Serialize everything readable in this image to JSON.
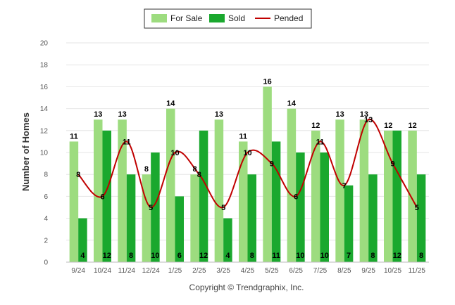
{
  "chart_data": {
    "type": "bar",
    "ylabel": "Number of Homes",
    "xlabel": "",
    "ylim": [
      0,
      20
    ],
    "yticks": [
      0,
      2,
      4,
      6,
      8,
      10,
      12,
      14,
      16,
      18,
      20
    ],
    "grid": true,
    "legend_position": "top-center",
    "categories": [
      "9/24",
      "10/24",
      "11/24",
      "12/24",
      "1/25",
      "2/25",
      "3/25",
      "4/25",
      "5/25",
      "6/25",
      "7/25",
      "8/25",
      "9/25",
      "10/25",
      "11/25"
    ],
    "series": [
      {
        "name": "For Sale",
        "kind": "bar",
        "color": "#9ddc7f",
        "values": [
          11,
          13,
          13,
          8,
          14,
          8,
          13,
          11,
          16,
          14,
          12,
          13,
          13,
          12,
          12
        ]
      },
      {
        "name": "Sold",
        "kind": "bar",
        "color": "#1aa82e",
        "values": [
          4,
          12,
          8,
          10,
          6,
          12,
          4,
          8,
          11,
          10,
          10,
          7,
          8,
          12,
          8
        ]
      },
      {
        "name": "Pended",
        "kind": "line",
        "color": "#c00000",
        "values": [
          8,
          6,
          11,
          5,
          10,
          8,
          5,
          10,
          9,
          6,
          11,
          7,
          13,
          9,
          5
        ]
      }
    ]
  },
  "footer": "Copyright © Trendgraphix, Inc."
}
